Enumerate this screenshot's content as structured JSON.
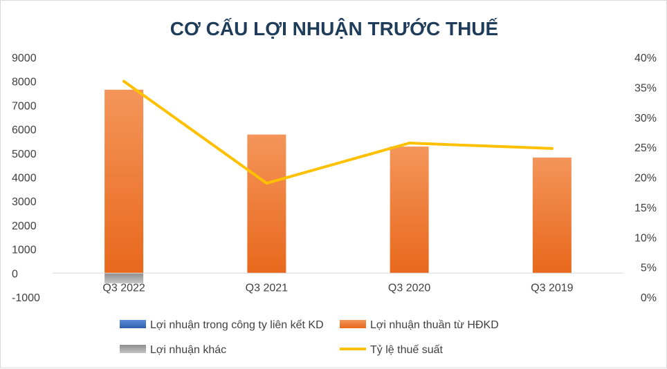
{
  "chart_data": {
    "type": "bar",
    "title": "CƠ CẤU LỢI NHUẬN TRƯỚC THUẾ",
    "categories": [
      "Q3 2022",
      "Q3 2021",
      "Q3 2020",
      "Q3 2019"
    ],
    "series": [
      {
        "name": "Lợi nhuận trong công ty liên kết KD",
        "kind": "bar",
        "axis": "left",
        "color": "#4472c4",
        "values": [
          0,
          0,
          0,
          0
        ]
      },
      {
        "name": "Lợi nhuận thuần từ HĐKD",
        "kind": "bar",
        "axis": "left",
        "color": "#ed7d31",
        "values": [
          7650,
          5780,
          5280,
          4820
        ]
      },
      {
        "name": "Lợi nhuận khác",
        "kind": "bar",
        "axis": "left",
        "color": "#a5a5a5",
        "values": [
          -420,
          0,
          0,
          0
        ]
      },
      {
        "name": "Tỷ lệ thuế suất",
        "kind": "line",
        "axis": "right",
        "color": "#ffc000",
        "values": [
          0.36,
          0.19,
          0.257,
          0.248
        ]
      }
    ],
    "y_left": {
      "min": -1000,
      "max": 9000,
      "step": 1000,
      "ticks": [
        "9000",
        "8000",
        "7000",
        "6000",
        "5000",
        "4000",
        "3000",
        "2000",
        "1000",
        "0",
        "-1000"
      ]
    },
    "y_right": {
      "min": 0,
      "max": 0.4,
      "step": 0.05,
      "ticks": [
        "40%",
        "35%",
        "30%",
        "25%",
        "20%",
        "15%",
        "10%",
        "5%",
        "0%"
      ]
    },
    "grid": false,
    "legend_position": "bottom"
  }
}
